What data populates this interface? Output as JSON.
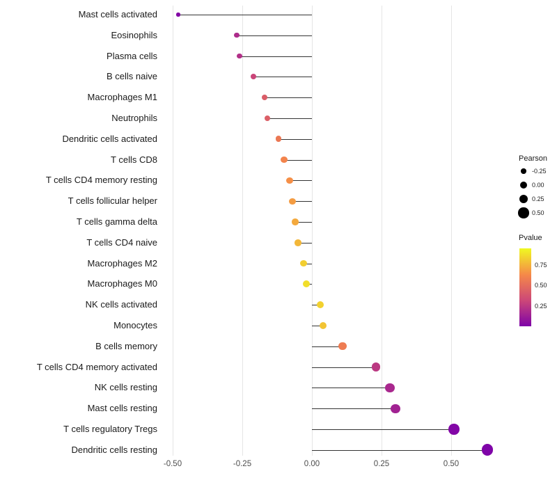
{
  "chart_data": {
    "type": "scatter",
    "subtype": "lollipop",
    "title": "",
    "xlabel": "",
    "ylabel": "",
    "x_ticks": [
      -0.5,
      -0.25,
      0.0,
      0.25,
      0.5
    ],
    "x_tick_labels": [
      "-0.50",
      "-0.25",
      "0.00",
      "0.25",
      "0.50"
    ],
    "xlim": [
      -0.53,
      0.67
    ],
    "grid": "vertical-major-only",
    "legend_position": "right",
    "categories": [
      "Mast cells activated",
      "Eosinophils",
      "Plasma cells",
      "B cells naive",
      "Macrophages M1",
      "Neutrophils",
      "Dendritic cells activated",
      "T cells CD8",
      "T cells CD4 memory resting",
      "T cells follicular helper",
      "T cells gamma delta",
      "T cells CD4 naive",
      "Macrophages M2",
      "Macrophages M0",
      "NK cells activated",
      "Monocytes",
      "B cells memory",
      "T cells CD4 memory activated",
      "NK cells resting",
      "Mast cells resting",
      "T cells regulatory  Tregs",
      "Dendritic cells resting"
    ],
    "series": [
      {
        "name": "Pearson",
        "values": [
          -0.48,
          -0.27,
          -0.26,
          -0.21,
          -0.17,
          -0.16,
          -0.12,
          -0.1,
          -0.08,
          -0.07,
          -0.06,
          -0.05,
          -0.03,
          -0.02,
          0.03,
          0.04,
          0.11,
          0.23,
          0.28,
          0.3,
          0.51,
          0.63
        ]
      },
      {
        "name": "Pvalue",
        "values": [
          0.02,
          0.2,
          0.22,
          0.32,
          0.44,
          0.45,
          0.58,
          0.64,
          0.68,
          0.72,
          0.76,
          0.8,
          0.87,
          0.92,
          0.88,
          0.84,
          0.6,
          0.26,
          0.18,
          0.15,
          0.015,
          0.003
        ]
      }
    ],
    "stem_color": "#333333"
  },
  "legend": {
    "size": {
      "title": "Pearson",
      "entries": [
        {
          "label": "-0.25",
          "value": -0.25
        },
        {
          "label": "0.00",
          "value": 0.0
        },
        {
          "label": "0.25",
          "value": 0.25
        },
        {
          "label": "0.50",
          "value": 0.5
        }
      ],
      "dot_color": "#000000"
    },
    "color": {
      "title": "Pvalue",
      "labels": [
        {
          "label": "0.75",
          "value": 0.75
        },
        {
          "label": "0.50",
          "value": 0.5
        },
        {
          "label": "0.25",
          "value": 0.25
        }
      ],
      "gradient_stops": [
        {
          "t": 0.0,
          "c": "#7e03a8"
        },
        {
          "t": 0.33,
          "c": "#cc4778"
        },
        {
          "t": 0.66,
          "c": "#f58849"
        },
        {
          "t": 1.0,
          "c": "#f0f921"
        }
      ],
      "scale_max": 0.95,
      "scale_min": 0.0
    }
  }
}
